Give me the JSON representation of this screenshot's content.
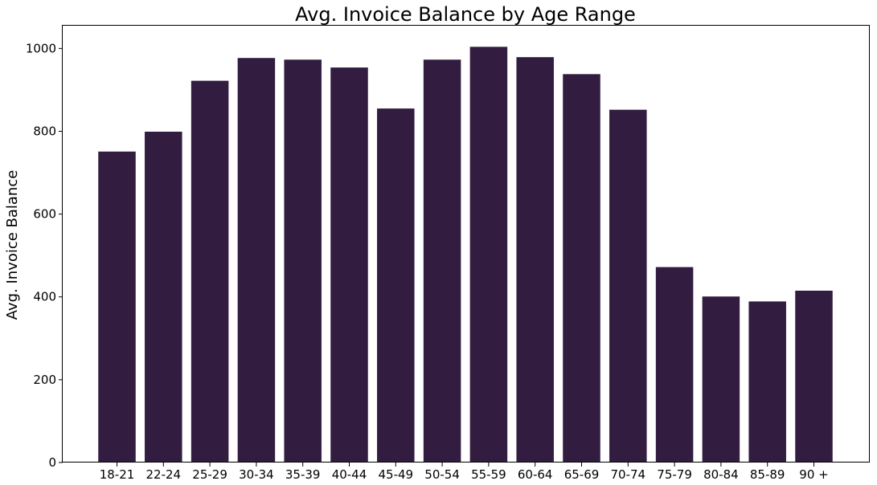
{
  "chart_data": {
    "type": "bar",
    "title": "Avg. Invoice Balance by Age Range",
    "xlabel": "",
    "ylabel": "Avg. Invoice Balance",
    "categories": [
      "18-21",
      "22-24",
      "25-29",
      "30-34",
      "35-39",
      "40-44",
      "45-49",
      "50-54",
      "55-59",
      "60-64",
      "65-69",
      "70-74",
      "75-79",
      "80-84",
      "85-89",
      "90 +"
    ],
    "values": [
      751,
      799,
      922,
      977,
      973,
      954,
      855,
      973,
      1004,
      979,
      938,
      852,
      472,
      401,
      389,
      415
    ],
    "ylim": [
      0,
      1055
    ],
    "yticks": [
      0,
      200,
      400,
      600,
      800,
      1000
    ],
    "grid": false,
    "legend": "none",
    "bar_color": "#321c3f"
  }
}
